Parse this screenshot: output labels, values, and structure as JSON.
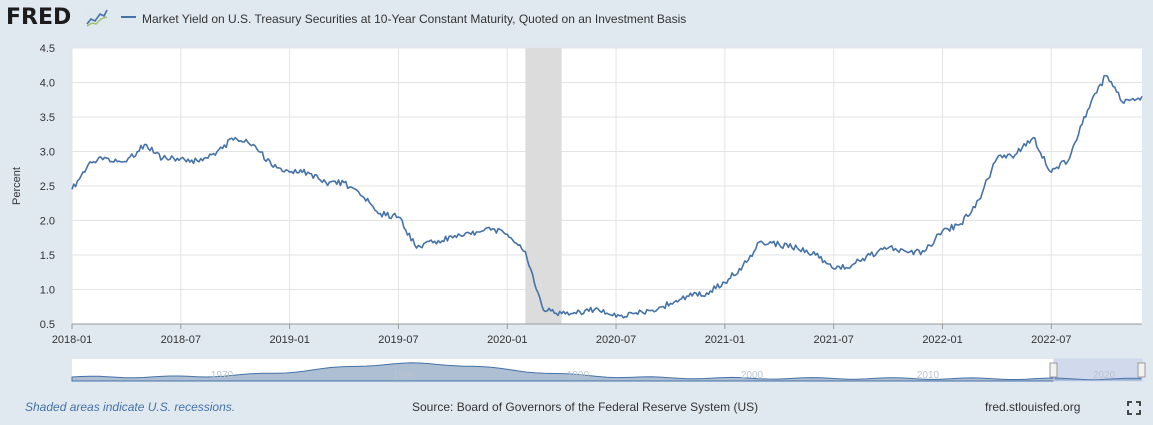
{
  "header": {
    "logo": "FRED",
    "legend_label": "Market Yield on U.S. Treasury Securities at 10-Year Constant Maturity, Quoted on an Investment Basis"
  },
  "footer": {
    "recession_note": "Shaded areas indicate U.S. recessions.",
    "source": "Source: Board of Governors of the Federal Reserve System (US)",
    "url": "fred.stlouisfed.org"
  },
  "colors": {
    "series": "#4572a7",
    "background": "#e1e9f0",
    "recession": "#dcdcdc"
  },
  "chart_data": {
    "type": "line",
    "title": "",
    "xlabel": "",
    "ylabel": "Percent",
    "xlim": [
      "2018-01",
      "2022-12"
    ],
    "ylim": [
      0.5,
      4.5
    ],
    "yticks": [
      "0.5",
      "1.0",
      "1.5",
      "2.0",
      "2.5",
      "3.0",
      "3.5",
      "4.0",
      "4.5"
    ],
    "xticks": [
      "2018-01",
      "2018-07",
      "2019-01",
      "2019-07",
      "2020-01",
      "2020-07",
      "2021-01",
      "2021-07",
      "2022-01",
      "2022-07"
    ],
    "grid": true,
    "legend": "top",
    "recession": [
      "2020-02",
      "2020-04"
    ],
    "series": [
      {
        "name": "Market Yield on U.S. Treasury Securities at 10-Year Constant Maturity, Quoted on an Investment Basis",
        "x": [
          "2018-01",
          "2018-02",
          "2018-03",
          "2018-04",
          "2018-05",
          "2018-06",
          "2018-07",
          "2018-08",
          "2018-09",
          "2018-10",
          "2018-11",
          "2018-12",
          "2019-01",
          "2019-02",
          "2019-03",
          "2019-04",
          "2019-05",
          "2019-06",
          "2019-07",
          "2019-08",
          "2019-09",
          "2019-10",
          "2019-11",
          "2019-12",
          "2020-01",
          "2020-02",
          "2020-03",
          "2020-04",
          "2020-05",
          "2020-06",
          "2020-07",
          "2020-08",
          "2020-09",
          "2020-10",
          "2020-11",
          "2020-12",
          "2021-01",
          "2021-02",
          "2021-03",
          "2021-04",
          "2021-05",
          "2021-06",
          "2021-07",
          "2021-08",
          "2021-09",
          "2021-10",
          "2021-11",
          "2021-12",
          "2022-01",
          "2022-02",
          "2022-03",
          "2022-04",
          "2022-05",
          "2022-06",
          "2022-07",
          "2022-08",
          "2022-09",
          "2022-10",
          "2022-11",
          "2022-12"
        ],
        "values": [
          2.45,
          2.85,
          2.9,
          2.85,
          3.1,
          2.9,
          2.9,
          2.85,
          3.0,
          3.2,
          3.1,
          2.8,
          2.7,
          2.7,
          2.55,
          2.55,
          2.35,
          2.1,
          2.05,
          1.6,
          1.7,
          1.75,
          1.8,
          1.9,
          1.8,
          1.55,
          0.7,
          0.65,
          0.68,
          0.72,
          0.6,
          0.65,
          0.7,
          0.8,
          0.9,
          0.95,
          1.1,
          1.35,
          1.7,
          1.65,
          1.6,
          1.5,
          1.3,
          1.35,
          1.5,
          1.6,
          1.55,
          1.55,
          1.85,
          1.95,
          2.3,
          2.9,
          2.95,
          3.2,
          2.7,
          2.9,
          3.6,
          4.1,
          3.7,
          3.8
        ]
      }
    ],
    "navigator_ticks": [
      "1970",
      "1980",
      "1990",
      "2000",
      "2010",
      "2020"
    ]
  }
}
